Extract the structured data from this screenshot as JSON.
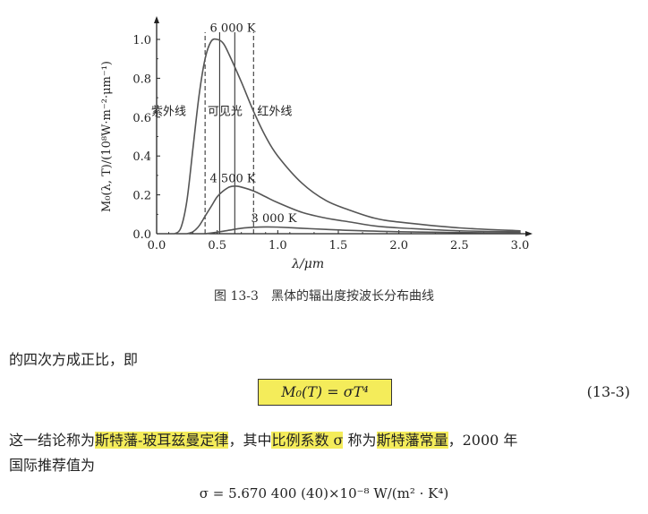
{
  "chart_data": {
    "type": "line",
    "ylabel": "M₀(λ, T)/(10⁸W·m⁻²·μm⁻¹)",
    "xlabel": "λ/μm",
    "xlim": [
      0,
      3.0
    ],
    "ylim": [
      0,
      1.1
    ],
    "x_ticks": [
      "0.0",
      "0.5",
      "1.0",
      "1.5",
      "2.0",
      "2.5",
      "3.0"
    ],
    "y_ticks": [
      "0.0",
      "0.2",
      "0.4",
      "0.6",
      "0.8",
      "1.0"
    ],
    "series": [
      {
        "name": "6 000 K",
        "x": [
          0.15,
          0.2,
          0.25,
          0.3,
          0.35,
          0.4,
          0.45,
          0.5,
          0.55,
          0.6,
          0.7,
          0.8,
          0.9,
          1.0,
          1.2,
          1.4,
          1.6,
          1.8,
          2.0,
          2.5,
          3.0
        ],
        "y": [
          0.0,
          0.03,
          0.17,
          0.44,
          0.71,
          0.9,
          0.99,
          1.0,
          0.98,
          0.92,
          0.78,
          0.63,
          0.5,
          0.4,
          0.26,
          0.17,
          0.12,
          0.08,
          0.06,
          0.03,
          0.015
        ]
      },
      {
        "name": "4 500 K",
        "x": [
          0.25,
          0.3,
          0.35,
          0.4,
          0.45,
          0.5,
          0.55,
          0.6,
          0.65,
          0.7,
          0.8,
          0.9,
          1.0,
          1.2,
          1.4,
          1.6,
          1.8,
          2.0,
          2.5,
          3.0
        ],
        "y": [
          0.0,
          0.01,
          0.04,
          0.09,
          0.14,
          0.19,
          0.22,
          0.24,
          0.245,
          0.24,
          0.22,
          0.19,
          0.16,
          0.11,
          0.08,
          0.06,
          0.04,
          0.03,
          0.015,
          0.01
        ]
      },
      {
        "name": "3 000 K",
        "x": [
          0.4,
          0.5,
          0.6,
          0.7,
          0.8,
          0.9,
          1.0,
          1.2,
          1.4,
          1.6,
          2.0,
          2.5,
          3.0
        ],
        "y": [
          0.0,
          0.008,
          0.018,
          0.028,
          0.033,
          0.035,
          0.034,
          0.028,
          0.022,
          0.017,
          0.01,
          0.006,
          0.004
        ]
      }
    ],
    "vlines": [
      0.4,
      0.52,
      0.645,
      0.8
    ],
    "dashed_vlines": [
      0.4,
      0.8
    ],
    "region_labels": [
      "紫外线",
      "可见光",
      "红外线"
    ]
  },
  "caption": "图 13-3　黑体的辐出度按波长分布曲线",
  "text": {
    "line1": "的四次方成正比，即",
    "equation": "M₀(T) = σT⁴",
    "equation_number": "(13-3)",
    "l3_a": "这一结论称为",
    "l3_hl1": "斯特藩-玻耳兹曼定律",
    "l3_b": "，其中",
    "l3_hl2": "比例系数 σ",
    "l3_c": " 称为",
    "l3_hl3": "斯特藩常量",
    "l3_d": "，2000 年",
    "line4": "国际推荐值为",
    "sigma_value": "σ = 5.670 400 (40)×10⁻⁸ W/(m² · K⁴)"
  },
  "colors": {
    "curve": "#555555",
    "highlight": "#f4ec5a",
    "axis": "#222222"
  }
}
